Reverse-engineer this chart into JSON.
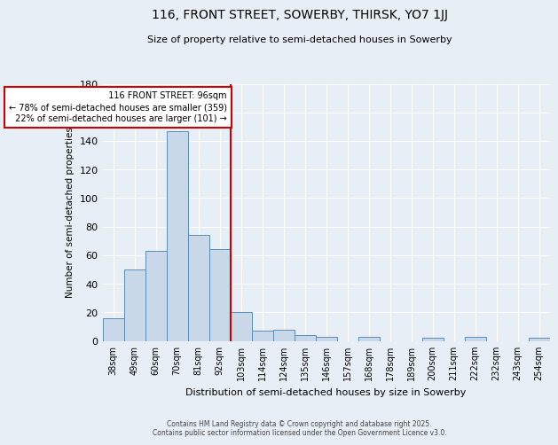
{
  "title1": "116, FRONT STREET, SOWERBY, THIRSK, YO7 1JJ",
  "title2": "Size of property relative to semi-detached houses in Sowerby",
  "xlabel": "Distribution of semi-detached houses by size in Sowerby",
  "ylabel": "Number of semi-detached properties",
  "footnote1": "Contains HM Land Registry data © Crown copyright and database right 2025.",
  "footnote2": "Contains public sector information licensed under the Open Government Licence v3.0.",
  "bin_labels": [
    "38sqm",
    "49sqm",
    "60sqm",
    "70sqm",
    "81sqm",
    "92sqm",
    "103sqm",
    "114sqm",
    "124sqm",
    "135sqm",
    "146sqm",
    "157sqm",
    "168sqm",
    "178sqm",
    "189sqm",
    "200sqm",
    "211sqm",
    "222sqm",
    "232sqm",
    "243sqm",
    "254sqm"
  ],
  "values": [
    16,
    50,
    63,
    147,
    74,
    64,
    20,
    7,
    8,
    4,
    3,
    0,
    3,
    0,
    0,
    2,
    0,
    3,
    0,
    0,
    2
  ],
  "bar_color": "#c8d8e8",
  "bar_edge_color": "#5b8db8",
  "vline_color": "#cc0000",
  "property_label": "116 FRONT STREET: 96sqm",
  "pct_smaller": "78%",
  "pct_smaller_n": 359,
  "pct_larger": "22%",
  "pct_larger_n": 101,
  "annotation_box_color": "#cc0000",
  "ylim": [
    0,
    180
  ],
  "yticks": [
    0,
    20,
    40,
    60,
    80,
    100,
    120,
    140,
    160,
    180
  ],
  "bg_color": "#e8eef5",
  "plot_bg_color": "#e8eef5",
  "grid_color": "#ffffff",
  "vline_index": 5.5
}
